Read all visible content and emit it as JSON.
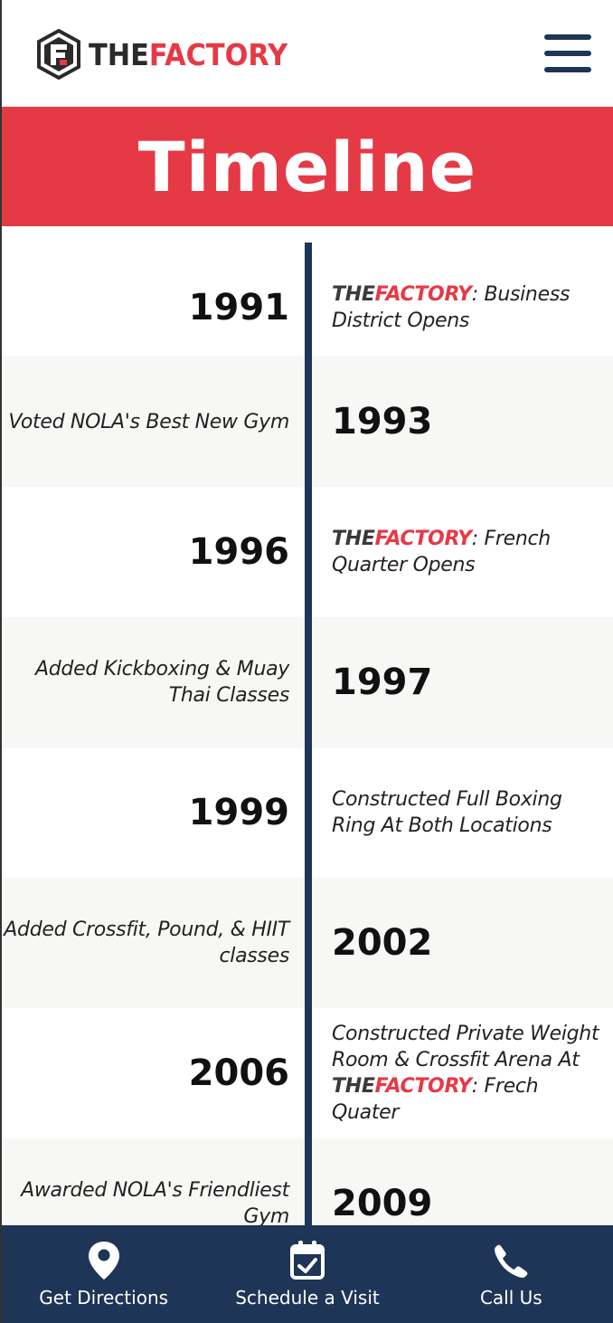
{
  "header": {
    "logo_the": "THE",
    "logo_factory": "FACTORY"
  },
  "banner": {
    "title": "Timeline"
  },
  "timeline": {
    "brand_the": "THE",
    "brand_factory": "FACTORY",
    "rows": [
      {
        "year": "1991",
        "side": "left-year",
        "pre": "",
        "brand": true,
        "text": ": Business District Opens"
      },
      {
        "year": "1993",
        "side": "right-year",
        "pre": "",
        "brand": false,
        "text": "Voted NOLA's Best New Gym"
      },
      {
        "year": "1996",
        "side": "left-year",
        "pre": "",
        "brand": true,
        "text": ": French Quarter Opens"
      },
      {
        "year": "1997",
        "side": "right-year",
        "pre": "",
        "brand": false,
        "text": "Added Kickboxing & Muay Thai Classes"
      },
      {
        "year": "1999",
        "side": "left-year",
        "pre": "",
        "brand": false,
        "text": "Constructed Full Boxing Ring At Both Locations"
      },
      {
        "year": "2002",
        "side": "right-year",
        "pre": "",
        "brand": false,
        "text": "Added Crossfit, Pound, & HIIT classes"
      },
      {
        "year": "2006",
        "side": "left-year",
        "pre": "Constructed Private Weight Room & Crossfit Arena At ",
        "brand": true,
        "text": ": Frech Quater"
      },
      {
        "year": "2009",
        "side": "right-year",
        "pre": "",
        "brand": false,
        "text": "Awarded NOLA's Friendliest Gym"
      }
    ]
  },
  "bottom_bar": {
    "directions": "Get Directions",
    "schedule": "Schedule a Visit",
    "call": "Call Us"
  },
  "colors": {
    "brand_red": "#e63946",
    "navy": "#1f3557"
  },
  "icons": [
    "logo-icon",
    "hamburger-icon",
    "map-pin-icon",
    "calendar-check-icon",
    "phone-icon"
  ]
}
